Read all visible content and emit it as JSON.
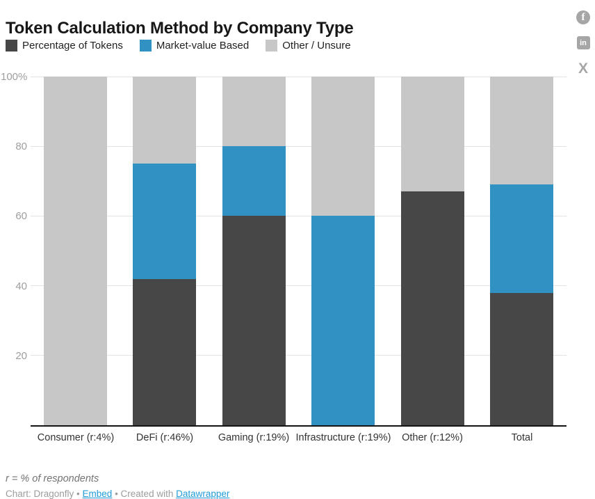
{
  "title": "Token Calculation Method by Company Type",
  "legend": [
    {
      "label": "Percentage of Tokens",
      "color": "#474747"
    },
    {
      "label": "Market-value Based",
      "color": "#3191c2"
    },
    {
      "label": "Other / Unsure",
      "color": "#c7c7c7"
    }
  ],
  "social": {
    "facebook_glyph": "f",
    "linkedin_glyph": "in",
    "x_glyph": "X"
  },
  "chart_data": {
    "type": "bar",
    "stacked": true,
    "title": "Token Calculation Method by Company Type",
    "categories": [
      "Consumer (r:4%)",
      "DeFi (r:46%)",
      "Gaming (r:19%)",
      "Infrastructure (r:19%)",
      "Other (r:12%)",
      "Total"
    ],
    "series": [
      {
        "name": "Percentage of Tokens",
        "color": "#474747",
        "values": [
          0,
          42,
          60,
          0,
          67,
          38
        ]
      },
      {
        "name": "Market-value Based",
        "color": "#3191c2",
        "values": [
          0,
          33,
          20,
          60,
          0,
          31
        ]
      },
      {
        "name": "Other / Unsure",
        "color": "#c7c7c7",
        "values": [
          100,
          25,
          20,
          40,
          33,
          31
        ]
      }
    ],
    "ylim": [
      0,
      100
    ],
    "yticks": [
      {
        "value": 100,
        "label": "100%"
      },
      {
        "value": 80,
        "label": "80"
      },
      {
        "value": 60,
        "label": "60"
      },
      {
        "value": 40,
        "label": "40"
      },
      {
        "value": 20,
        "label": "20"
      }
    ],
    "grid": true,
    "legend_position": "top",
    "unit": "%"
  },
  "footer": {
    "note": "r = % of respondents",
    "credit_prefix": "Chart: Dragonfly",
    "separator": " • ",
    "embed_label": "Embed",
    "created_with": "Created with",
    "datawrapper_label": "Datawrapper",
    "link_color": "#1f9cd8"
  }
}
